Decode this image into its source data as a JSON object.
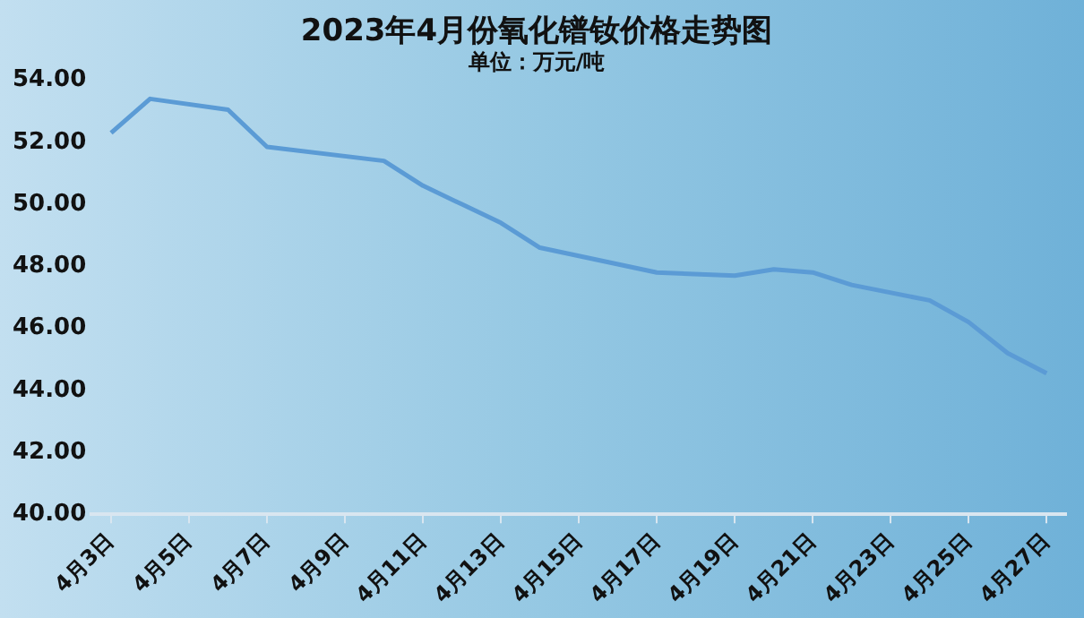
{
  "chart_data": {
    "type": "line",
    "title": "2023年4月份氧化镨钕价格走势图",
    "subtitle": "单位：万元/吨",
    "x": [
      "2023-04-03",
      "2023-04-04",
      "2023-04-06",
      "2023-04-07",
      "2023-04-10",
      "2023-04-11",
      "2023-04-12",
      "2023-04-13",
      "2023-04-14",
      "2023-04-17",
      "2023-04-19",
      "2023-04-20",
      "2023-04-21",
      "2023-04-22",
      "2023-04-24",
      "2023-04-25",
      "2023-04-26",
      "2023-04-27"
    ],
    "series": [
      {
        "color": "#5b9bd5",
        "values": [
          52.3,
          53.4,
          53.05,
          51.85,
          51.4,
          50.6,
          50.0,
          49.4,
          48.6,
          47.8,
          47.7,
          47.9,
          47.8,
          47.4,
          46.9,
          46.2,
          45.2,
          44.55
        ]
      }
    ],
    "xlim": [
      "2023-04-02T12:00",
      "2023-04-27T12:00"
    ],
    "xticks": [
      {
        "value": "2023-04-03",
        "label": "4月3日"
      },
      {
        "value": "2023-04-05",
        "label": "4月5日"
      },
      {
        "value": "2023-04-07",
        "label": "4月7日"
      },
      {
        "value": "2023-04-09",
        "label": "4月9日"
      },
      {
        "value": "2023-04-11",
        "label": "4月11日"
      },
      {
        "value": "2023-04-13",
        "label": "4月13日"
      },
      {
        "value": "2023-04-15",
        "label": "4月15日"
      },
      {
        "value": "2023-04-17",
        "label": "4月17日"
      },
      {
        "value": "2023-04-19",
        "label": "4月19日"
      },
      {
        "value": "2023-04-21",
        "label": "4月21日"
      },
      {
        "value": "2023-04-23",
        "label": "4月23日"
      },
      {
        "value": "2023-04-25",
        "label": "4月25日"
      },
      {
        "value": "2023-04-27",
        "label": "4月27日"
      }
    ],
    "ylim": [
      40,
      54
    ],
    "yticks": [
      {
        "value": 40,
        "label": "40.00"
      },
      {
        "value": 42,
        "label": "42.00"
      },
      {
        "value": 44,
        "label": "44.00"
      },
      {
        "value": 46,
        "label": "46.00"
      },
      {
        "value": 48,
        "label": "48.00"
      },
      {
        "value": 50,
        "label": "50.00"
      },
      {
        "value": 52,
        "label": "52.00"
      },
      {
        "value": 54,
        "label": "54.00"
      }
    ],
    "grid": false,
    "legend": false,
    "marker": "none",
    "line_style": "solid"
  }
}
